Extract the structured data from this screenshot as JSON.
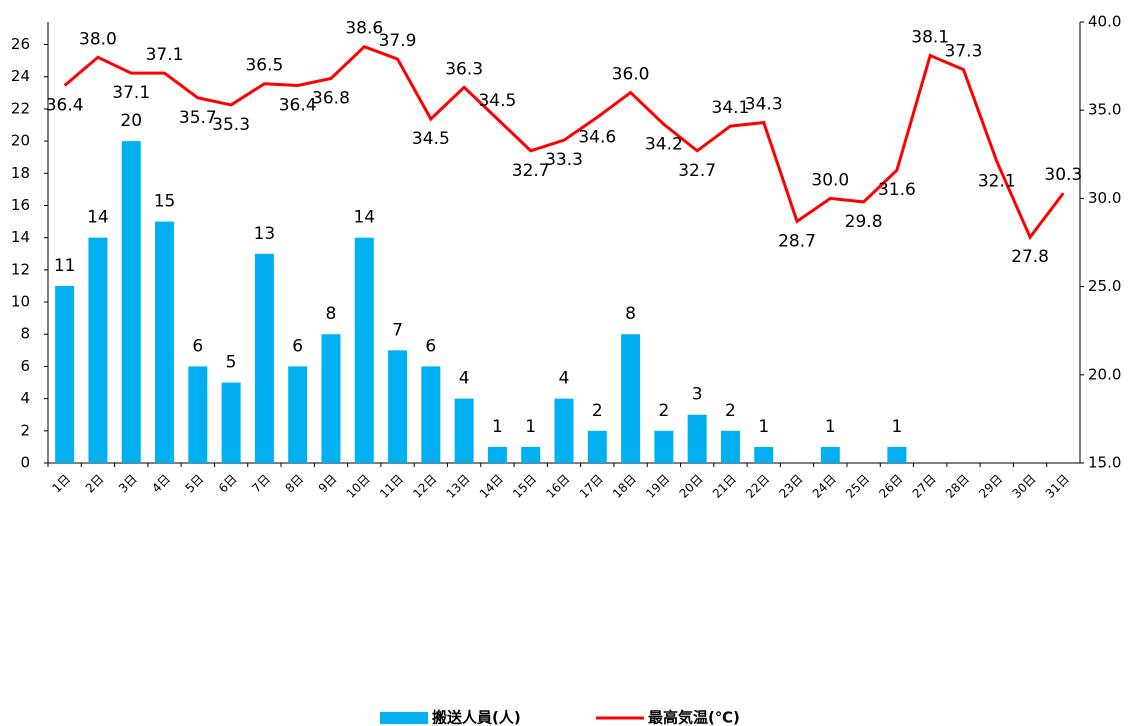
{
  "chart_data": {
    "type": "bar-line",
    "categories": [
      "1日",
      "2日",
      "3日",
      "4日",
      "5日",
      "6日",
      "7日",
      "8日",
      "9日",
      "10日",
      "11日",
      "12日",
      "13日",
      "14日",
      "15日",
      "16日",
      "17日",
      "18日",
      "19日",
      "20日",
      "21日",
      "22日",
      "23日",
      "24日",
      "25日",
      "26日",
      "27日",
      "28日",
      "29日",
      "30日",
      "31日"
    ],
    "series": [
      {
        "name": "搬送人員(人)",
        "type": "bar",
        "color": "#00b0f0",
        "values": [
          11,
          14,
          20,
          15,
          6,
          5,
          13,
          6,
          8,
          14,
          7,
          6,
          4,
          1,
          1,
          4,
          2,
          8,
          2,
          3,
          2,
          1,
          null,
          1,
          null,
          1,
          null,
          null,
          null,
          null,
          null
        ]
      },
      {
        "name": "最高気温(℃)",
        "type": "line",
        "axis": "y2",
        "color": "#ff0000",
        "values": [
          36.4,
          38.0,
          37.1,
          37.1,
          35.7,
          35.3,
          36.5,
          36.4,
          36.8,
          38.6,
          37.9,
          34.5,
          36.3,
          34.5,
          32.7,
          33.3,
          34.6,
          36.0,
          34.2,
          32.7,
          34.1,
          34.3,
          28.7,
          30.0,
          29.8,
          31.6,
          38.1,
          37.3,
          32.1,
          27.8,
          30.3
        ],
        "value_labels": [
          "36.4",
          "38.0",
          "37.1",
          "37.1",
          "35.7",
          "35.3",
          "36.5",
          "36.4",
          "36.8",
          "38.6",
          "37.9",
          "34.5",
          "36.3",
          "34.5",
          "32.7",
          "33.3",
          "34.6",
          "36.0",
          "34.2",
          "32.7",
          "34.1",
          "34.3",
          "28.7",
          "30.0",
          "29.8",
          "31.6",
          "38.1",
          "37.3",
          "32.1",
          "27.8",
          "30.3"
        ]
      }
    ],
    "ylim": [
      0,
      27.4
    ],
    "yticks": [
      0,
      2,
      4,
      6,
      8,
      10,
      12,
      14,
      16,
      18,
      20,
      22,
      24,
      26
    ],
    "y2lim": [
      15,
      40
    ],
    "y2ticks": [
      {
        "value": 15,
        "label": "15.0"
      },
      {
        "value": 20,
        "label": "20.0"
      },
      {
        "value": 25,
        "label": "25.0"
      },
      {
        "value": 30,
        "label": "30.0"
      },
      {
        "value": 35,
        "label": "35.0"
      },
      {
        "value": 40,
        "label": "40.0"
      }
    ],
    "legend": "bottom"
  }
}
